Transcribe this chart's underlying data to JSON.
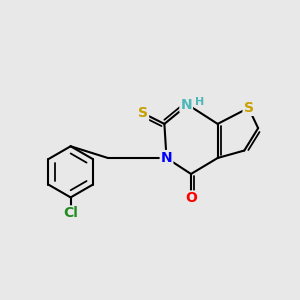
{
  "background_color": "#e8e8e8",
  "atom_colors": {
    "S": "#c8a000",
    "N": "#0000ff",
    "O": "#ff0000",
    "Cl": "#228b22",
    "C": "#000000",
    "NH": "#4db8b8"
  },
  "bond_color": "#000000",
  "bond_width": 1.5,
  "font_size_atom": 10,
  "font_size_small": 8,
  "font_size_Cl": 10
}
